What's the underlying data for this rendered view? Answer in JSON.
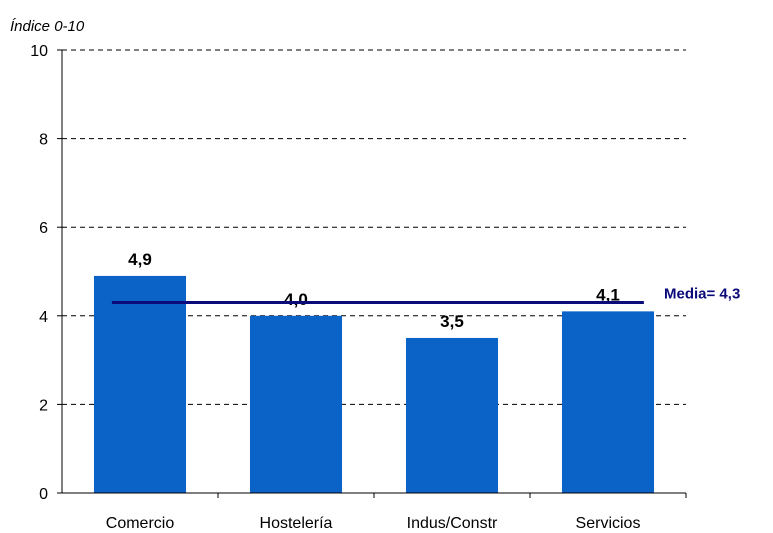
{
  "chart_data": {
    "type": "bar",
    "ylabel": "Índice 0-10",
    "categories": [
      "Comercio",
      "Hostelería",
      "Indus/Constr",
      "Servicios"
    ],
    "values": [
      4.9,
      4.0,
      3.5,
      4.1
    ],
    "value_labels": [
      "4,9",
      "4,0",
      "3,5",
      "4,1"
    ],
    "ylim": [
      0,
      10
    ],
    "yticks": [
      0,
      2,
      4,
      6,
      8,
      10
    ],
    "grid": true,
    "bar_color": "#0b63c7",
    "mean": {
      "value": 4.3,
      "label": "Media= 4,3",
      "color": "#0a0a7a"
    }
  }
}
